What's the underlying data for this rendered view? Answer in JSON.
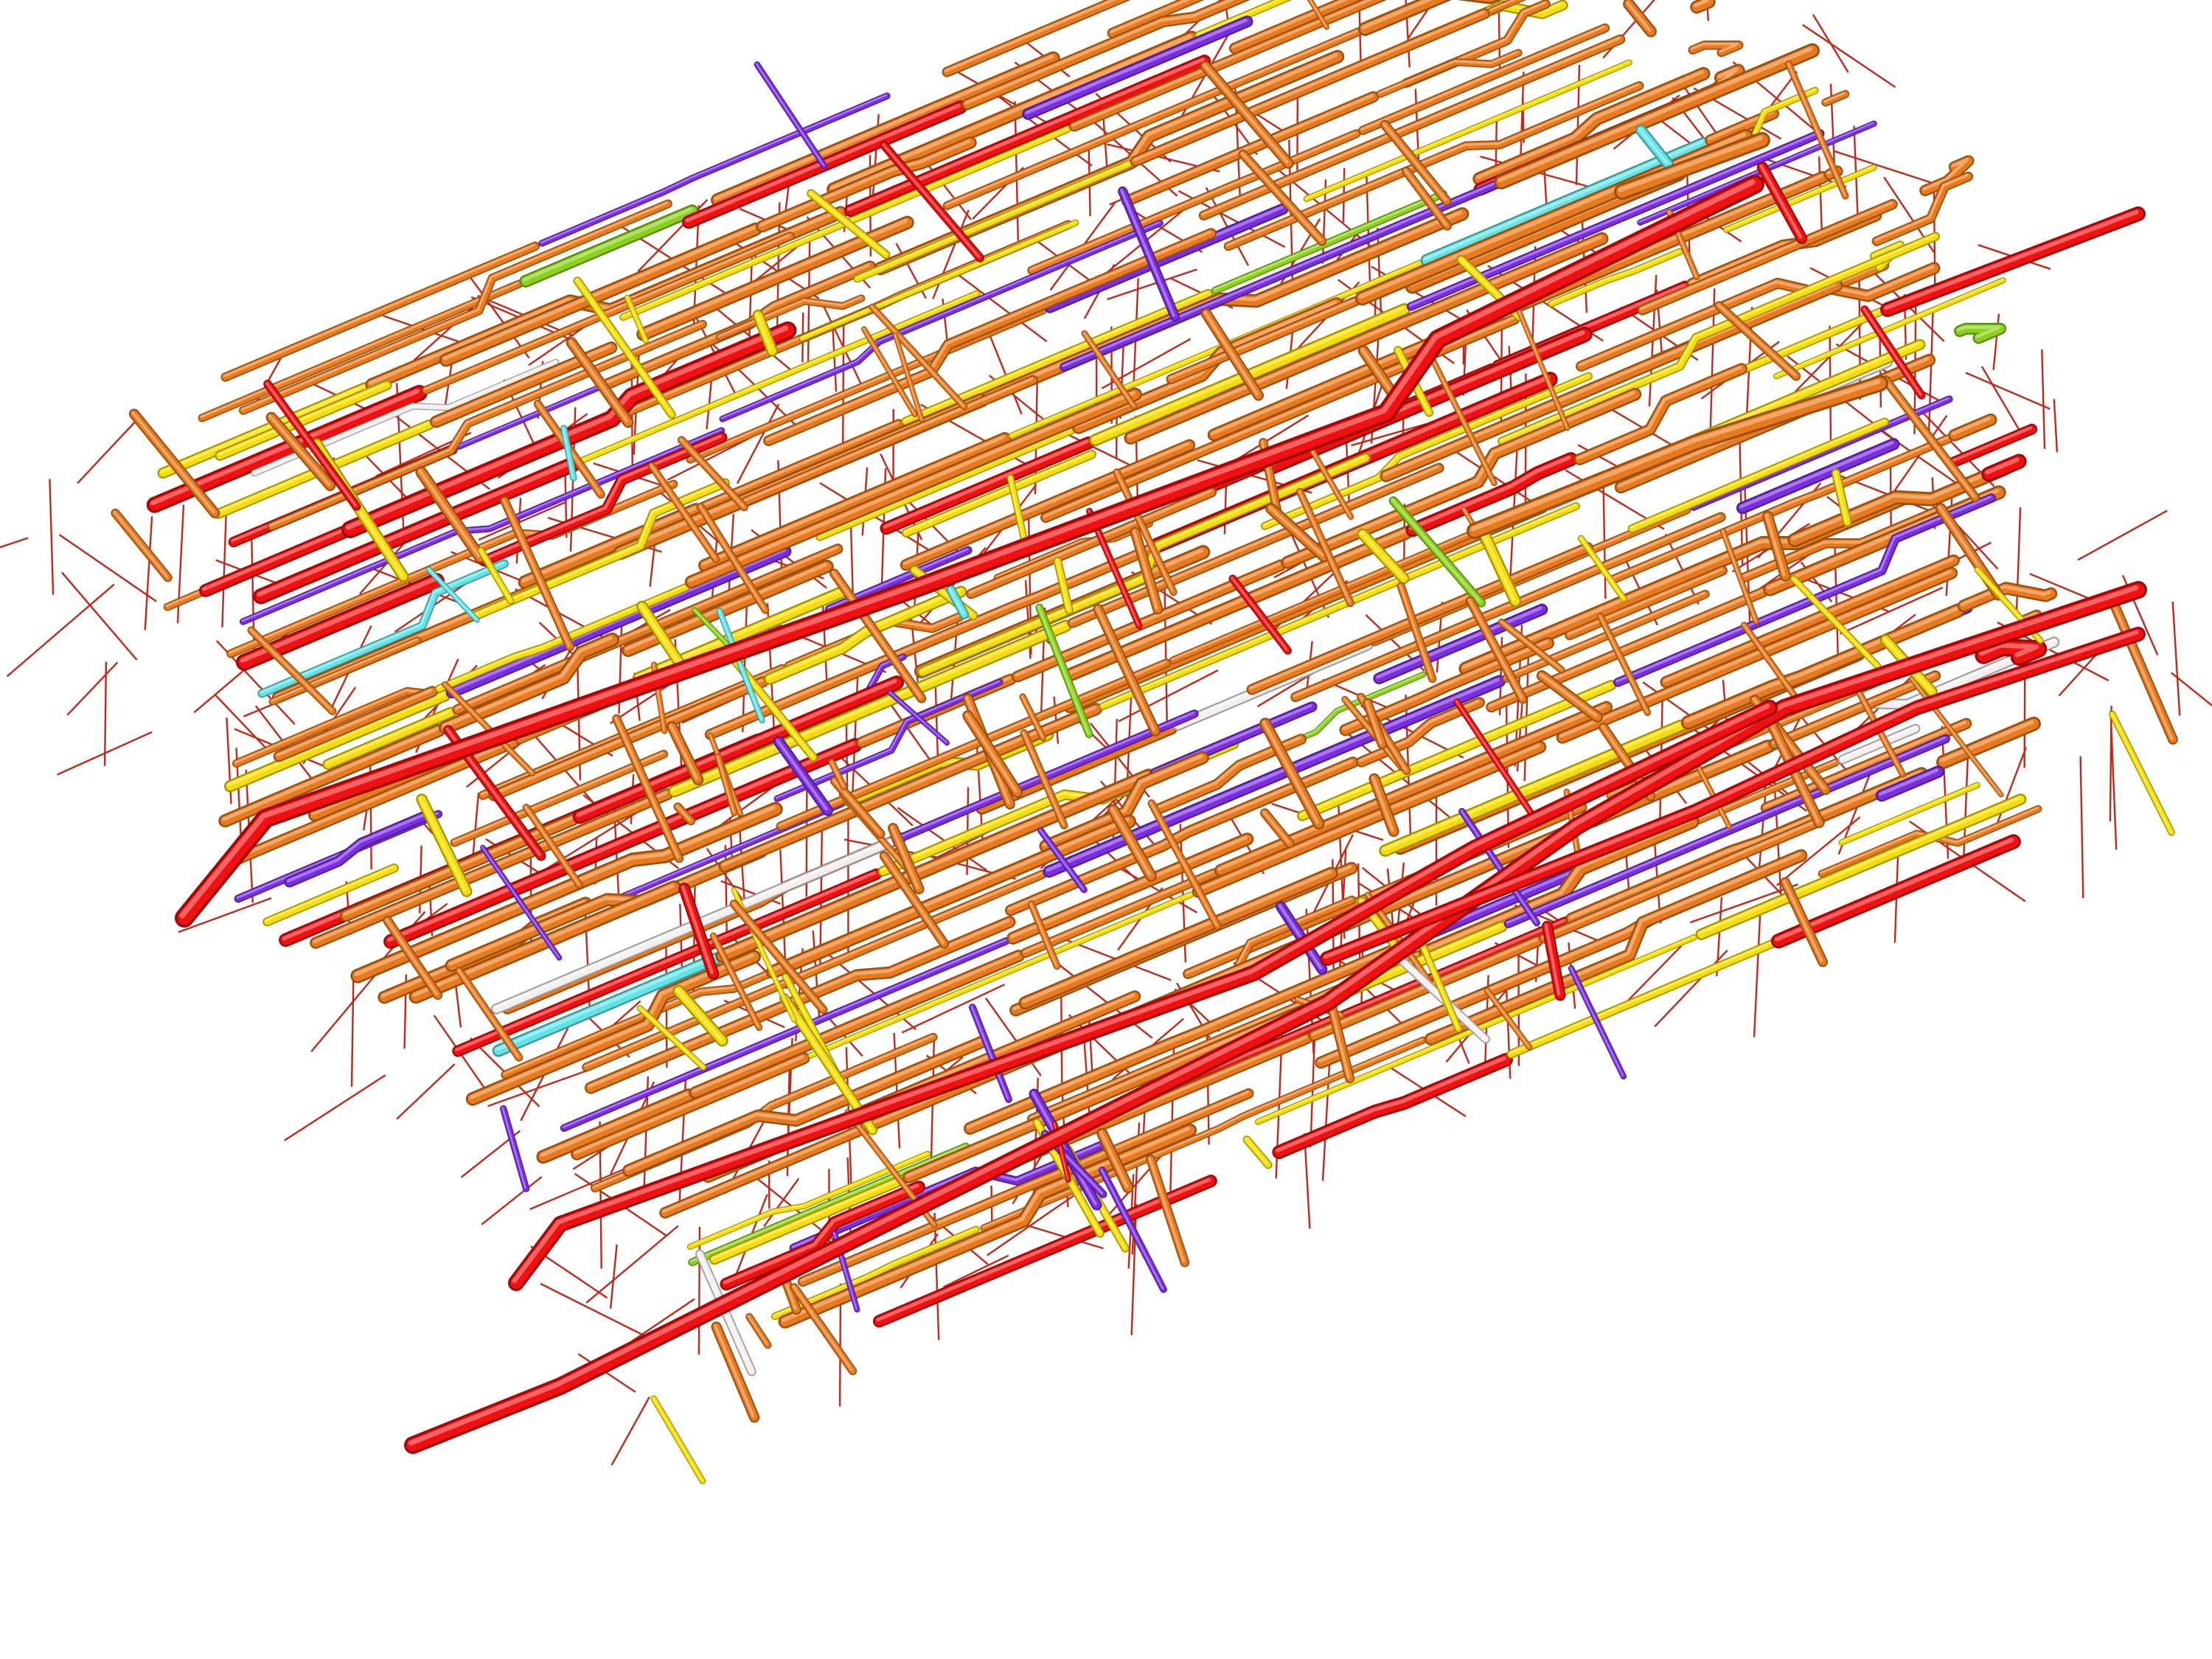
{
  "scene": {
    "background": "#ffffff",
    "render_style": "3D tube network (structural lattice), isometric view",
    "palette": {
      "orange": "#e8791c",
      "red": "#f01010",
      "yellow": "#f5dd00",
      "purple": "#7a2ee0",
      "cyan": "#5fe3e6",
      "green": "#8ad11a",
      "white": "#f2eeee",
      "thin_link": "#c0291a"
    },
    "color_weights": {
      "orange": 0.55,
      "yellow": 0.17,
      "red": 0.1,
      "purple": 0.12,
      "cyan": 0.02,
      "green": 0.02,
      "white": 0.02
    }
  }
}
